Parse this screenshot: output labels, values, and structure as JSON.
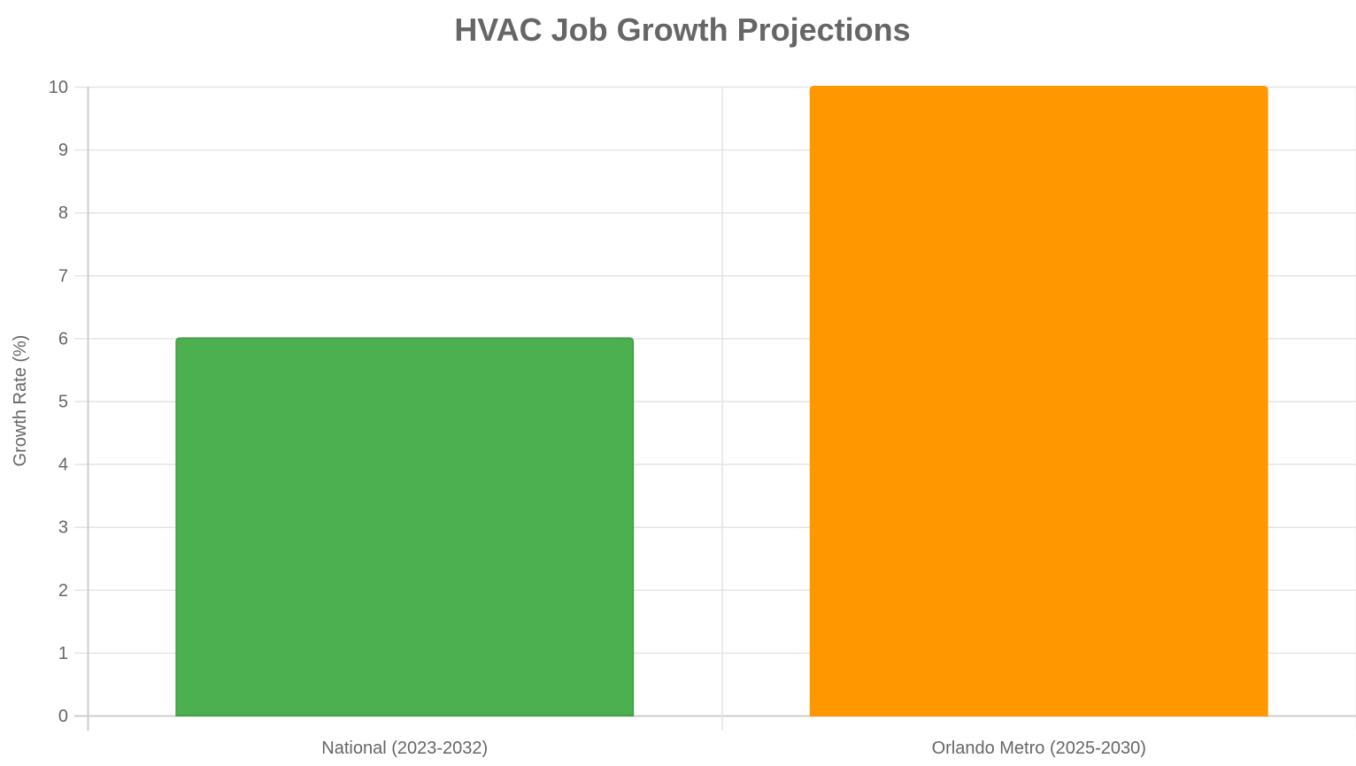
{
  "chart_data": {
    "type": "bar",
    "title": "HVAC Job Growth Projections",
    "xlabel": "",
    "ylabel": "Growth Rate (%)",
    "categories": [
      "National (2023-2032)",
      "Orlando Metro (2025-2030)"
    ],
    "values": [
      6,
      10
    ],
    "colors": [
      "#4CAF50",
      "#FF9800"
    ],
    "border_colors": [
      "#45a049",
      "#FF9800"
    ],
    "ylim": [
      0,
      10
    ],
    "yticks": [
      0,
      1,
      2,
      3,
      4,
      5,
      6,
      7,
      8,
      9,
      10
    ],
    "grid": true,
    "legend": "none"
  }
}
